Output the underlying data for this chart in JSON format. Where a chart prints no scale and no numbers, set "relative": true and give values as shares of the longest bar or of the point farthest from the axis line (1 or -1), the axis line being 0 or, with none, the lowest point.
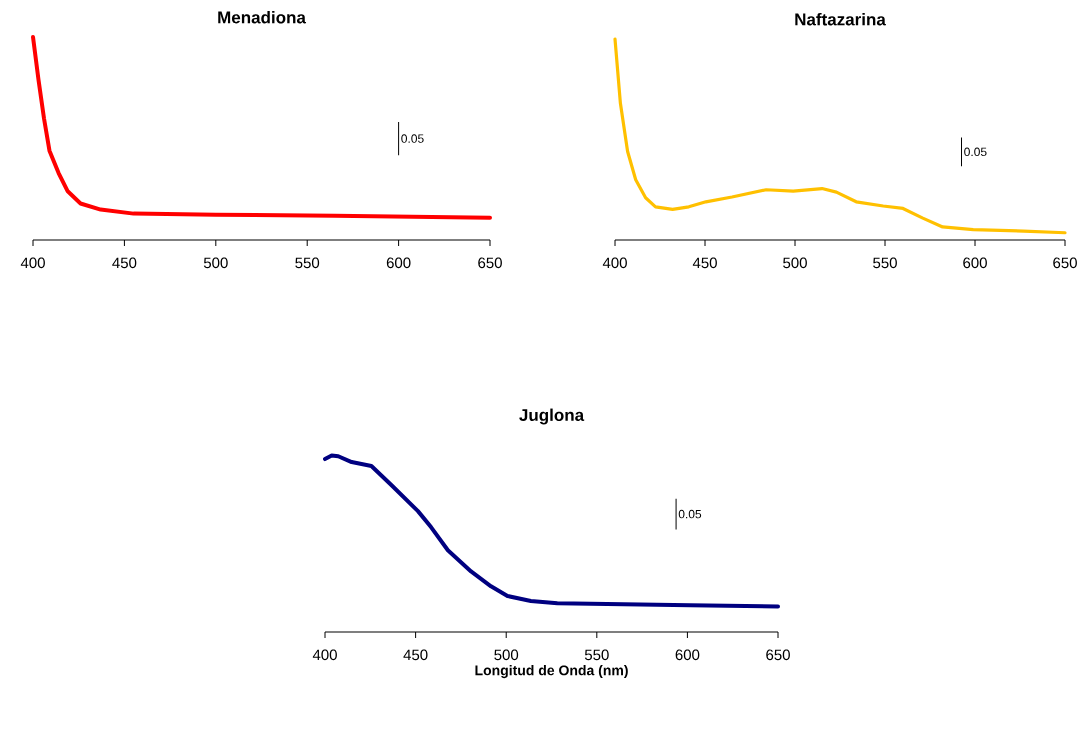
{
  "chart_data": [
    {
      "type": "line",
      "title": "Menadiona",
      "relative": true,
      "xlim": [
        400,
        650
      ],
      "xticks": [
        400,
        450,
        500,
        550,
        600,
        650
      ],
      "annotations": [
        "0.05"
      ],
      "series": [
        {
          "color": "#ff0000",
          "x": [
            400,
            403,
            406,
            409,
            414,
            419,
            426,
            437,
            455,
            500,
            565,
            650
          ],
          "values": [
            1.0,
            0.79,
            0.6,
            0.44,
            0.33,
            0.24,
            0.18,
            0.15,
            0.13,
            0.124,
            0.12,
            0.11
          ]
        }
      ]
    },
    {
      "type": "line",
      "title": "Naftazarina",
      "relative": true,
      "xlim": [
        400,
        650
      ],
      "xticks": [
        400,
        450,
        500,
        550,
        600,
        650
      ],
      "annotations": [
        "0.05"
      ],
      "series": [
        {
          "color": "#ffc000",
          "x": [
            400,
            403,
            407,
            411.5,
            417,
            422.5,
            432,
            441,
            450.5,
            465,
            484,
            499,
            515,
            523,
            534,
            549,
            560,
            571,
            582,
            599,
            627,
            650
          ],
          "values": [
            1.0,
            0.68,
            0.44,
            0.3,
            0.21,
            0.165,
            0.152,
            0.165,
            0.19,
            0.214,
            0.25,
            0.243,
            0.256,
            0.238,
            0.19,
            0.169,
            0.157,
            0.109,
            0.065,
            0.052,
            0.044,
            0.036
          ]
        }
      ]
    },
    {
      "type": "line",
      "title": "Juglona",
      "xlabel": "Longitud de Onda (nm)",
      "relative": true,
      "xlim": [
        400,
        650
      ],
      "xticks": [
        400,
        450,
        500,
        550,
        600,
        650
      ],
      "annotations": [
        "0.05"
      ],
      "series": [
        {
          "color": "#000080",
          "x": [
            400,
            403.7,
            407.3,
            414.7,
            425.6,
            436.6,
            451.3,
            458.6,
            467.8,
            480.6,
            491.6,
            500.7,
            513.6,
            528.2,
            564.8,
            601.5,
            650
          ],
          "values": [
            0.98,
            1.0,
            0.996,
            0.963,
            0.941,
            0.833,
            0.685,
            0.593,
            0.463,
            0.343,
            0.259,
            0.204,
            0.176,
            0.163,
            0.157,
            0.152,
            0.144
          ]
        }
      ]
    }
  ]
}
